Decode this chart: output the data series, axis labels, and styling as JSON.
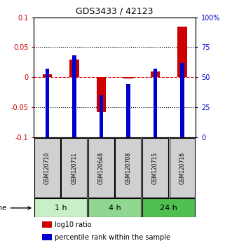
{
  "title": "GDS3433 / 42123",
  "samples": [
    "GSM120710",
    "GSM120711",
    "GSM120648",
    "GSM120708",
    "GSM120715",
    "GSM120716"
  ],
  "log10_ratio": [
    0.005,
    0.03,
    -0.058,
    -0.002,
    0.01,
    0.085
  ],
  "percentile_rank": [
    57,
    68,
    35,
    44,
    57,
    62
  ],
  "groups": [
    {
      "label": "1 h",
      "indices": [
        0,
        1
      ],
      "color": "#c8f0c8"
    },
    {
      "label": "4 h",
      "indices": [
        2,
        3
      ],
      "color": "#90d890"
    },
    {
      "label": "24 h",
      "indices": [
        4,
        5
      ],
      "color": "#50c050"
    }
  ],
  "ylim_left": [
    -0.1,
    0.1
  ],
  "ylim_right": [
    0,
    100
  ],
  "yticks_left": [
    -0.1,
    -0.05,
    0,
    0.05,
    0.1
  ],
  "yticks_right": [
    0,
    25,
    50,
    75,
    100
  ],
  "ytick_labels_left": [
    "-0.1",
    "-0.05",
    "0",
    "0.05",
    "0.1"
  ],
  "ytick_labels_right": [
    "0",
    "25",
    "50",
    "75",
    "100%"
  ],
  "bar_color_red": "#cc0000",
  "bar_color_blue": "#0000cc",
  "hline_color": "#dd0000",
  "dotted_color": "#000000",
  "bar_width": 0.35,
  "blue_bar_width": 0.15,
  "background_color": "#ffffff",
  "plot_bg_color": "#ffffff",
  "sample_bg_color": "#d0d0d0",
  "time_label": "time"
}
